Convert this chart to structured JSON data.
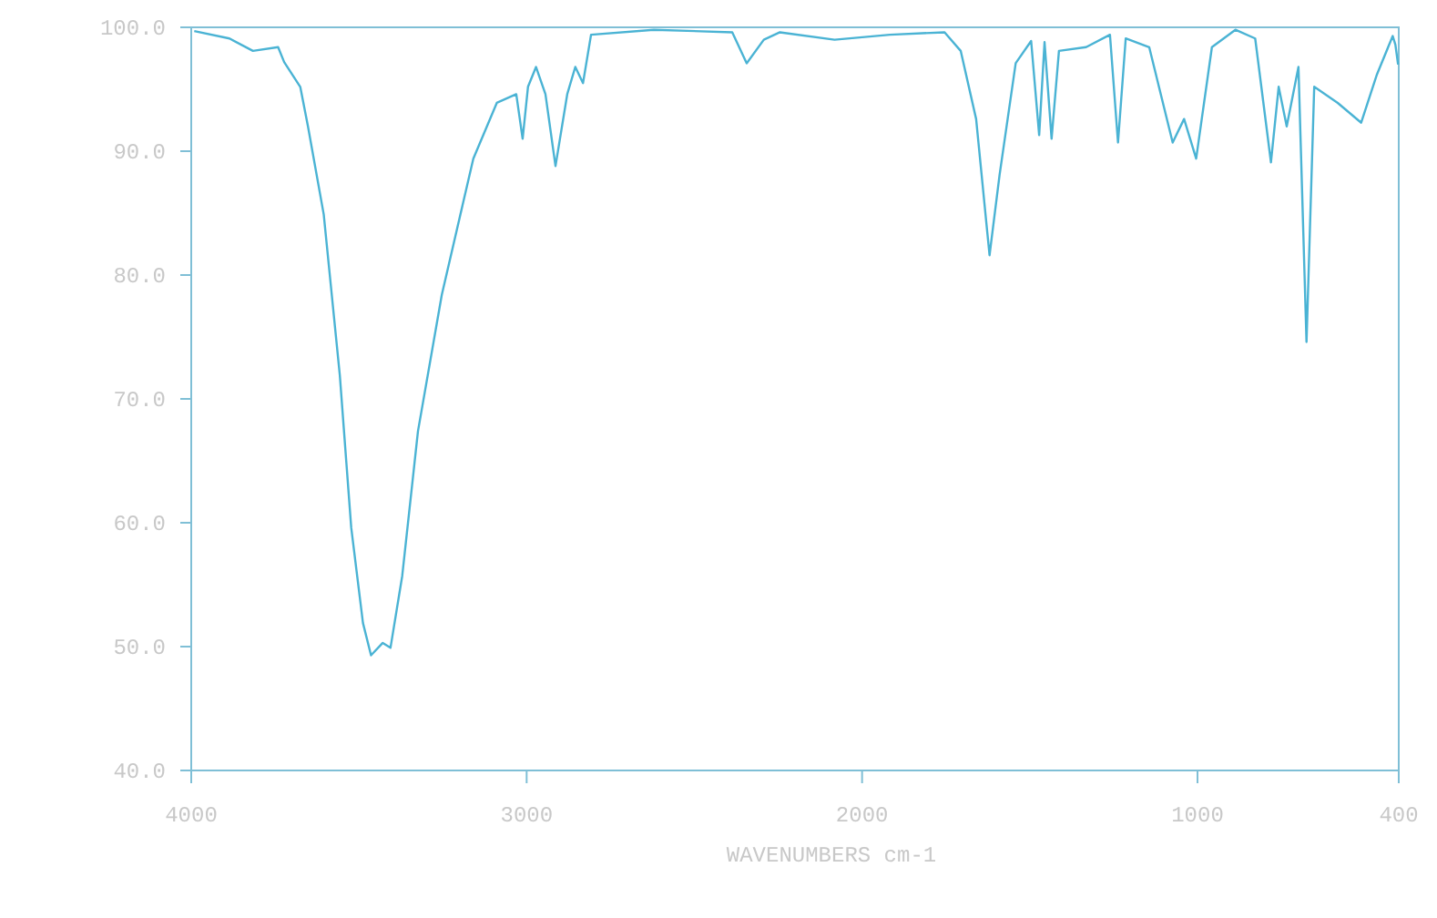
{
  "chart_data": {
    "type": "line",
    "xlabel": "WAVENUMBERS  cm-1",
    "xlim": [
      4000,
      400
    ],
    "ylim": [
      40,
      100
    ],
    "xticks": [
      4000,
      3000,
      2000,
      1000,
      400
    ],
    "yticks": [
      {
        "value": 40,
        "label": "40.0"
      },
      {
        "value": 50,
        "label": "50.0"
      },
      {
        "value": 60,
        "label": "60.0"
      },
      {
        "value": 70,
        "label": "70.0"
      },
      {
        "value": 80,
        "label": "80.0"
      },
      {
        "value": 90,
        "label": "90.0"
      },
      {
        "value": 100,
        "label": "100.0"
      }
    ],
    "grid": false,
    "marker": "none",
    "line_style": "solid",
    "series": [
      {
        "color": "#4ab3d4",
        "x": [
          3991,
          3886,
          3816,
          3741,
          3723,
          3675,
          3652,
          3605,
          3557,
          3523,
          3488,
          3464,
          3429,
          3406,
          3371,
          3324,
          3253,
          3159,
          3089,
          3031,
          3012,
          2996,
          2972,
          2944,
          2914,
          2879,
          2855,
          2832,
          2808,
          2621,
          2387,
          2344,
          2293,
          2245,
          2082,
          1917,
          1754,
          1706,
          1660,
          1620,
          1590,
          1542,
          1496,
          1472,
          1456,
          1435,
          1413,
          1332,
          1261,
          1237,
          1214,
          1144,
          1074,
          1040,
          1004,
          957,
          887,
          828,
          781,
          758,
          734,
          699,
          675,
          652,
          582,
          512,
          465,
          418,
          410,
          402
        ],
        "values": [
          99.7,
          99.1,
          98.1,
          98.4,
          97.2,
          95.2,
          92.0,
          84.9,
          71.9,
          59.6,
          51.9,
          49.3,
          50.3,
          49.9,
          55.7,
          67.4,
          78.4,
          89.4,
          93.9,
          94.6,
          91.0,
          95.2,
          96.8,
          94.6,
          88.8,
          94.6,
          96.8,
          95.5,
          99.4,
          99.8,
          99.6,
          97.1,
          99.0,
          99.6,
          99.0,
          99.4,
          99.6,
          98.1,
          92.6,
          81.6,
          88.1,
          97.1,
          98.9,
          91.3,
          98.8,
          91.0,
          98.1,
          98.4,
          99.4,
          90.7,
          99.1,
          98.4,
          90.7,
          92.6,
          89.4,
          98.4,
          99.8,
          99.1,
          89.1,
          95.2,
          92.0,
          96.8,
          74.6,
          95.2,
          93.9,
          92.3,
          96.2,
          99.3,
          98.6,
          97.0
        ]
      }
    ]
  }
}
